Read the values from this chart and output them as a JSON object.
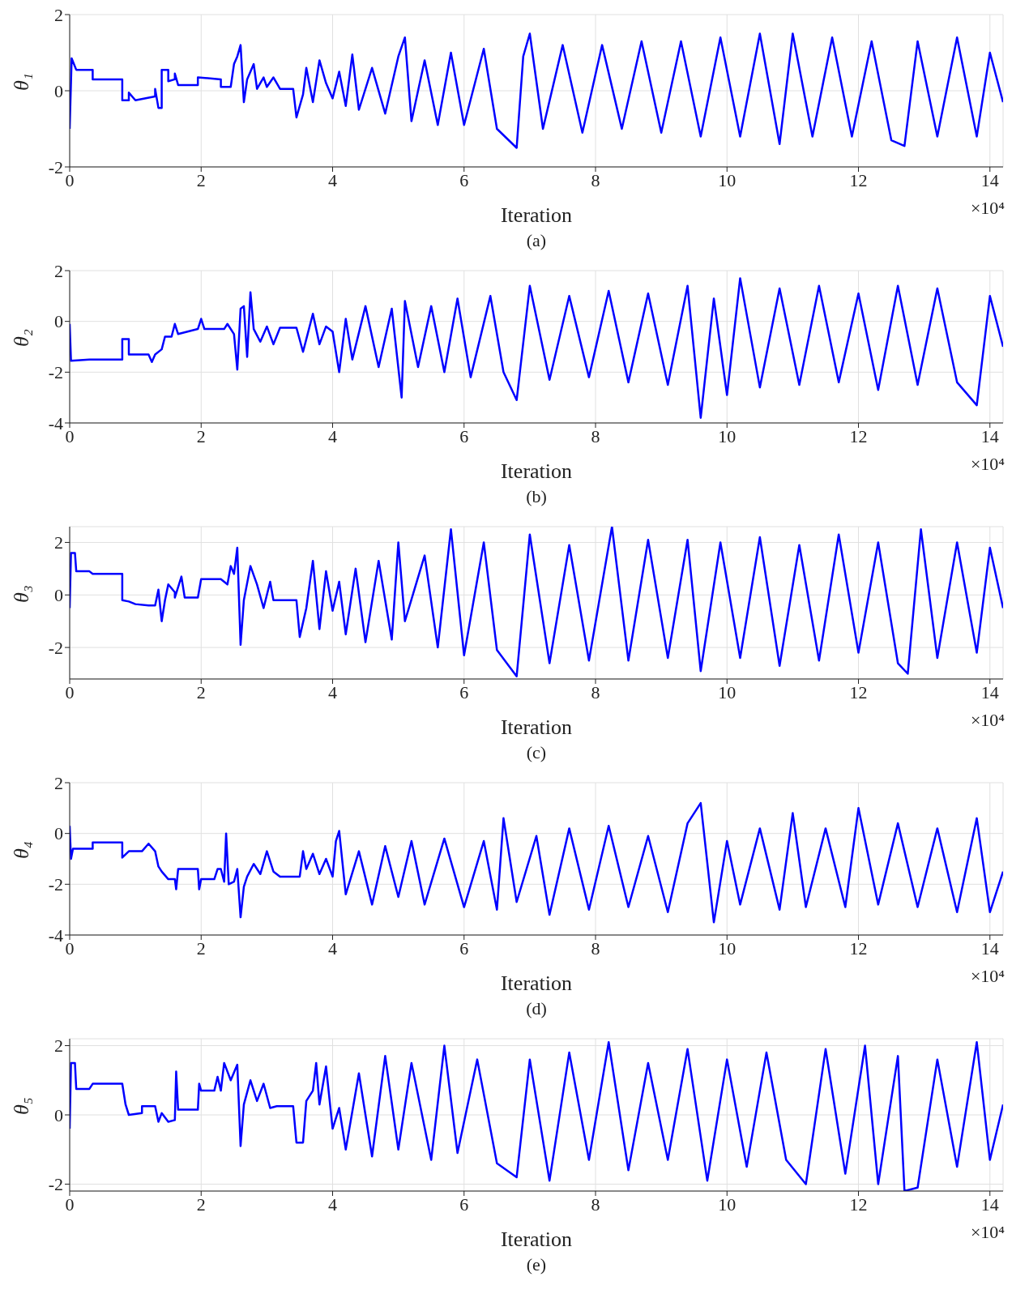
{
  "chart_data": [
    {
      "type": "line",
      "xlabel": "Iteration",
      "ylabel": "θ₁",
      "annotations": [
        "×10⁴",
        "(a)"
      ],
      "xlim": [
        0,
        14.2
      ],
      "xticks": [
        0,
        2,
        4,
        6,
        8,
        10,
        12,
        14
      ],
      "ylim": [
        -2,
        2
      ],
      "yticks": [
        -2,
        0,
        2
      ],
      "grid": true,
      "series": [
        {
          "color": "#0000ff",
          "x": [
            0,
            0.03,
            0.1,
            0.35,
            0.35,
            0.8,
            0.8,
            0.9,
            0.9,
            1.0,
            1.3,
            1.3,
            1.35,
            1.4,
            1.4,
            1.5,
            1.5,
            1.6,
            1.6,
            1.65,
            1.95,
            1.95,
            2.3,
            2.3,
            2.45,
            2.5,
            2.55,
            2.6,
            2.65,
            2.7,
            2.8,
            2.85,
            2.95,
            3.0,
            3.1,
            3.2,
            3.4,
            3.45,
            3.55,
            3.6,
            3.7,
            3.8,
            3.9,
            4.0,
            4.1,
            4.2,
            4.3,
            4.4,
            4.6,
            4.8,
            5.0,
            5.1,
            5.2,
            5.4,
            5.6,
            5.8,
            6.0,
            6.3,
            6.5,
            6.8,
            6.9,
            7.0,
            7.2,
            7.5,
            7.8,
            8.1,
            8.4,
            8.7,
            9.0,
            9.3,
            9.6,
            9.9,
            10.2,
            10.5,
            10.8,
            11.0,
            11.3,
            11.6,
            11.9,
            12.2,
            12.5,
            12.7,
            12.9,
            13.2,
            13.5,
            13.8,
            14.0,
            14.2
          ],
          "values": [
            -1.0,
            0.85,
            0.55,
            0.55,
            0.3,
            0.3,
            -0.25,
            -0.25,
            -0.05,
            -0.25,
            -0.15,
            0.05,
            -0.45,
            -0.45,
            0.55,
            0.55,
            0.25,
            0.3,
            0.45,
            0.15,
            0.15,
            0.35,
            0.3,
            0.1,
            0.1,
            0.7,
            0.9,
            1.2,
            -0.3,
            0.3,
            0.7,
            0.05,
            0.35,
            0.1,
            0.35,
            0.05,
            0.05,
            -0.7,
            -0.1,
            0.6,
            -0.3,
            0.8,
            0.2,
            -0.2,
            0.5,
            -0.4,
            0.95,
            -0.5,
            0.6,
            -0.6,
            0.9,
            1.4,
            -0.8,
            0.8,
            -0.9,
            1.0,
            -0.9,
            1.1,
            -1.0,
            -1.5,
            0.9,
            1.5,
            -1.0,
            1.2,
            -1.1,
            1.2,
            -1.0,
            1.3,
            -1.1,
            1.3,
            -1.2,
            1.4,
            -1.2,
            1.5,
            -1.4,
            1.5,
            -1.2,
            1.4,
            -1.2,
            1.3,
            -1.3,
            -1.45,
            1.3,
            -1.2,
            1.4,
            -1.2,
            1.0,
            -0.3
          ]
        }
      ]
    },
    {
      "type": "line",
      "xlabel": "Iteration",
      "ylabel": "θ₂",
      "annotations": [
        "×10⁴",
        "(b)"
      ],
      "xlim": [
        0,
        14.2
      ],
      "xticks": [
        0,
        2,
        4,
        6,
        8,
        10,
        12,
        14
      ],
      "ylim": [
        -4,
        2
      ],
      "yticks": [
        -4,
        -2,
        0,
        2
      ],
      "grid": true,
      "series": [
        {
          "color": "#0000ff",
          "x": [
            0,
            0.02,
            0.3,
            0.8,
            0.8,
            0.9,
            0.9,
            1.2,
            1.25,
            1.3,
            1.4,
            1.45,
            1.55,
            1.6,
            1.65,
            1.95,
            2.0,
            2.05,
            2.35,
            2.4,
            2.5,
            2.55,
            2.6,
            2.65,
            2.7,
            2.75,
            2.8,
            2.9,
            3.0,
            3.1,
            3.2,
            3.45,
            3.55,
            3.6,
            3.7,
            3.8,
            3.9,
            4.0,
            4.1,
            4.2,
            4.3,
            4.5,
            4.7,
            4.9,
            5.05,
            5.1,
            5.3,
            5.5,
            5.7,
            5.9,
            6.1,
            6.4,
            6.6,
            6.8,
            7.0,
            7.3,
            7.6,
            7.9,
            8.2,
            8.5,
            8.8,
            9.1,
            9.4,
            9.6,
            9.8,
            10.0,
            10.2,
            10.5,
            10.8,
            11.1,
            11.4,
            11.7,
            12.0,
            12.3,
            12.6,
            12.9,
            13.2,
            13.5,
            13.8,
            14.0,
            14.2
          ],
          "values": [
            -0.1,
            -1.55,
            -1.5,
            -1.5,
            -0.7,
            -0.7,
            -1.3,
            -1.3,
            -1.6,
            -1.3,
            -1.1,
            -0.6,
            -0.6,
            -0.1,
            -0.5,
            -0.3,
            0.1,
            -0.3,
            -0.3,
            -0.1,
            -0.5,
            -1.9,
            0.5,
            0.6,
            -1.4,
            1.15,
            -0.3,
            -0.8,
            -0.2,
            -0.9,
            -0.25,
            -0.25,
            -1.2,
            -0.7,
            0.3,
            -0.9,
            -0.2,
            -0.4,
            -2.0,
            0.1,
            -1.5,
            0.6,
            -1.8,
            0.5,
            -3.0,
            0.8,
            -1.8,
            0.6,
            -2.0,
            0.9,
            -2.2,
            1.0,
            -2.0,
            -3.1,
            1.4,
            -2.3,
            1.0,
            -2.2,
            1.2,
            -2.4,
            1.1,
            -2.5,
            1.4,
            -3.8,
            0.9,
            -2.9,
            1.7,
            -2.6,
            1.3,
            -2.5,
            1.4,
            -2.4,
            1.1,
            -2.7,
            1.4,
            -2.5,
            1.3,
            -2.4,
            -3.3,
            1.0,
            -1.0
          ]
        }
      ]
    },
    {
      "type": "line",
      "xlabel": "Iteration",
      "ylabel": "θ₃",
      "annotations": [
        "×10⁴",
        "(c)"
      ],
      "xlim": [
        0,
        14.2
      ],
      "xticks": [
        0,
        2,
        4,
        6,
        8,
        10,
        12,
        14
      ],
      "ylim": [
        -3.2,
        2.6
      ],
      "yticks": [
        -2,
        0,
        2
      ],
      "grid": true,
      "series": [
        {
          "color": "#0000ff",
          "x": [
            0,
            0.02,
            0.08,
            0.1,
            0.3,
            0.35,
            0.8,
            0.8,
            0.9,
            1.0,
            1.2,
            1.3,
            1.35,
            1.4,
            1.45,
            1.5,
            1.6,
            1.6,
            1.7,
            1.75,
            1.95,
            2.0,
            2.3,
            2.4,
            2.45,
            2.5,
            2.55,
            2.6,
            2.65,
            2.75,
            2.85,
            2.95,
            3.05,
            3.1,
            3.45,
            3.5,
            3.6,
            3.7,
            3.8,
            3.9,
            4.0,
            4.1,
            4.2,
            4.35,
            4.5,
            4.7,
            4.9,
            5.0,
            5.1,
            5.4,
            5.6,
            5.8,
            6.0,
            6.3,
            6.5,
            6.8,
            7.0,
            7.3,
            7.6,
            7.9,
            8.25,
            8.5,
            8.8,
            9.1,
            9.4,
            9.6,
            9.9,
            10.2,
            10.5,
            10.8,
            11.1,
            11.4,
            11.7,
            12.0,
            12.3,
            12.6,
            12.75,
            12.95,
            13.2,
            13.5,
            13.8,
            14.0,
            14.2
          ],
          "values": [
            -0.5,
            1.6,
            1.6,
            0.9,
            0.9,
            0.8,
            0.8,
            -0.2,
            -0.25,
            -0.35,
            -0.4,
            -0.4,
            0.2,
            -1.0,
            -0.2,
            0.4,
            0.1,
            -0.1,
            0.7,
            -0.1,
            -0.1,
            0.6,
            0.6,
            0.4,
            1.1,
            0.8,
            1.8,
            -1.9,
            -0.2,
            1.1,
            0.4,
            -0.5,
            0.5,
            -0.2,
            -0.2,
            -1.6,
            -0.5,
            1.3,
            -1.3,
            0.9,
            -0.6,
            0.5,
            -1.5,
            1.0,
            -1.8,
            1.3,
            -1.7,
            2.0,
            -1.0,
            1.5,
            -2.0,
            2.5,
            -2.3,
            2.0,
            -2.1,
            -3.1,
            2.3,
            -2.6,
            1.9,
            -2.5,
            2.6,
            -2.5,
            2.1,
            -2.4,
            2.1,
            -2.9,
            2.0,
            -2.4,
            2.2,
            -2.7,
            1.9,
            -2.5,
            2.3,
            -2.2,
            2.0,
            -2.6,
            -3.0,
            2.5,
            -2.4,
            2.0,
            -2.2,
            1.8,
            -0.5
          ]
        }
      ]
    },
    {
      "type": "line",
      "xlabel": "Iteration",
      "ylabel": "θ₄",
      "annotations": [
        "×10⁴",
        "(d)"
      ],
      "xlim": [
        0,
        14.2
      ],
      "xticks": [
        0,
        2,
        4,
        6,
        8,
        10,
        12,
        14
      ],
      "ylim": [
        -4,
        2
      ],
      "yticks": [
        -4,
        -2,
        0,
        2
      ],
      "grid": true,
      "series": [
        {
          "color": "#0000ff",
          "x": [
            0,
            0.02,
            0.05,
            0.35,
            0.35,
            0.8,
            0.8,
            0.9,
            1.1,
            1.2,
            1.3,
            1.35,
            1.4,
            1.5,
            1.6,
            1.62,
            1.65,
            1.95,
            1.97,
            2.0,
            2.2,
            2.25,
            2.3,
            2.35,
            2.38,
            2.42,
            2.5,
            2.55,
            2.6,
            2.65,
            2.7,
            2.8,
            2.9,
            3.0,
            3.1,
            3.2,
            3.5,
            3.55,
            3.6,
            3.7,
            3.8,
            3.9,
            4.0,
            4.05,
            4.1,
            4.2,
            4.4,
            4.6,
            4.8,
            5.0,
            5.2,
            5.4,
            5.7,
            6.0,
            6.3,
            6.5,
            6.6,
            6.8,
            7.1,
            7.3,
            7.6,
            7.9,
            8.2,
            8.5,
            8.8,
            9.1,
            9.4,
            9.6,
            9.8,
            10.0,
            10.2,
            10.5,
            10.8,
            11.0,
            11.2,
            11.5,
            11.8,
            12.0,
            12.3,
            12.6,
            12.9,
            13.2,
            13.5,
            13.8,
            14.0,
            14.2
          ],
          "values": [
            0.3,
            -1.0,
            -0.6,
            -0.6,
            -0.35,
            -0.35,
            -0.95,
            -0.7,
            -0.7,
            -0.4,
            -0.7,
            -1.3,
            -1.5,
            -1.8,
            -1.8,
            -2.2,
            -1.4,
            -1.4,
            -2.2,
            -1.8,
            -1.8,
            -1.4,
            -1.4,
            -1.9,
            0.0,
            -2.0,
            -1.9,
            -1.4,
            -3.3,
            -2.1,
            -1.7,
            -1.2,
            -1.6,
            -0.7,
            -1.5,
            -1.7,
            -1.7,
            -0.7,
            -1.4,
            -0.8,
            -1.6,
            -1.0,
            -1.7,
            -0.3,
            0.1,
            -2.4,
            -0.7,
            -2.8,
            -0.5,
            -2.5,
            -0.3,
            -2.8,
            -0.2,
            -2.9,
            -0.3,
            -3.0,
            0.6,
            -2.7,
            -0.1,
            -3.2,
            0.2,
            -3.0,
            0.3,
            -2.9,
            -0.1,
            -3.1,
            0.4,
            1.2,
            -3.5,
            -0.3,
            -2.8,
            0.2,
            -3.0,
            0.8,
            -2.9,
            0.2,
            -2.9,
            1.0,
            -2.8,
            0.4,
            -2.9,
            0.2,
            -3.1,
            0.6,
            -3.1,
            -1.5
          ]
        }
      ]
    },
    {
      "type": "line",
      "xlabel": "Iteration",
      "ylabel": "θ₅",
      "annotations": [
        "×10⁴",
        "(e)"
      ],
      "xlim": [
        0,
        14.2
      ],
      "xticks": [
        0,
        2,
        4,
        6,
        8,
        10,
        12,
        14
      ],
      "ylim": [
        -2.2,
        2.2
      ],
      "yticks": [
        -2,
        0,
        2
      ],
      "grid": true,
      "series": [
        {
          "color": "#0000ff",
          "x": [
            0,
            0.02,
            0.08,
            0.1,
            0.3,
            0.35,
            0.8,
            0.85,
            0.9,
            1.1,
            1.1,
            1.3,
            1.35,
            1.4,
            1.5,
            1.6,
            1.62,
            1.65,
            1.95,
            1.97,
            2.0,
            2.2,
            2.25,
            2.3,
            2.35,
            2.45,
            2.55,
            2.6,
            2.65,
            2.75,
            2.85,
            2.95,
            3.05,
            3.15,
            3.4,
            3.45,
            3.55,
            3.6,
            3.7,
            3.75,
            3.8,
            3.9,
            4.0,
            4.1,
            4.2,
            4.4,
            4.6,
            4.8,
            5.0,
            5.2,
            5.5,
            5.7,
            5.9,
            6.2,
            6.5,
            6.8,
            7.0,
            7.3,
            7.6,
            7.9,
            8.2,
            8.5,
            8.8,
            9.1,
            9.4,
            9.7,
            10.0,
            10.3,
            10.6,
            10.9,
            11.2,
            11.5,
            11.8,
            12.1,
            12.3,
            12.6,
            12.7,
            12.9,
            13.2,
            13.5,
            13.8,
            14.0,
            14.2
          ],
          "values": [
            -0.4,
            1.5,
            1.5,
            0.75,
            0.75,
            0.9,
            0.9,
            0.3,
            0.0,
            0.05,
            0.25,
            0.25,
            -0.2,
            0.05,
            -0.2,
            -0.15,
            1.25,
            0.15,
            0.15,
            0.9,
            0.7,
            0.7,
            1.1,
            0.7,
            1.5,
            1.0,
            1.45,
            -0.9,
            0.3,
            1.0,
            0.4,
            0.9,
            0.2,
            0.25,
            0.25,
            -0.8,
            -0.8,
            0.4,
            0.7,
            1.5,
            0.3,
            1.4,
            -0.4,
            0.2,
            -1.0,
            1.2,
            -1.2,
            1.7,
            -1.0,
            1.5,
            -1.3,
            2.0,
            -1.1,
            1.6,
            -1.4,
            -1.8,
            1.6,
            -1.9,
            1.8,
            -1.3,
            2.1,
            -1.6,
            1.5,
            -1.3,
            1.9,
            -1.9,
            1.6,
            -1.5,
            1.8,
            -1.3,
            -2.0,
            1.9,
            -1.7,
            2.0,
            -2.0,
            1.7,
            -2.2,
            -2.1,
            1.6,
            -1.5,
            2.1,
            -1.3,
            0.3
          ]
        }
      ]
    }
  ]
}
